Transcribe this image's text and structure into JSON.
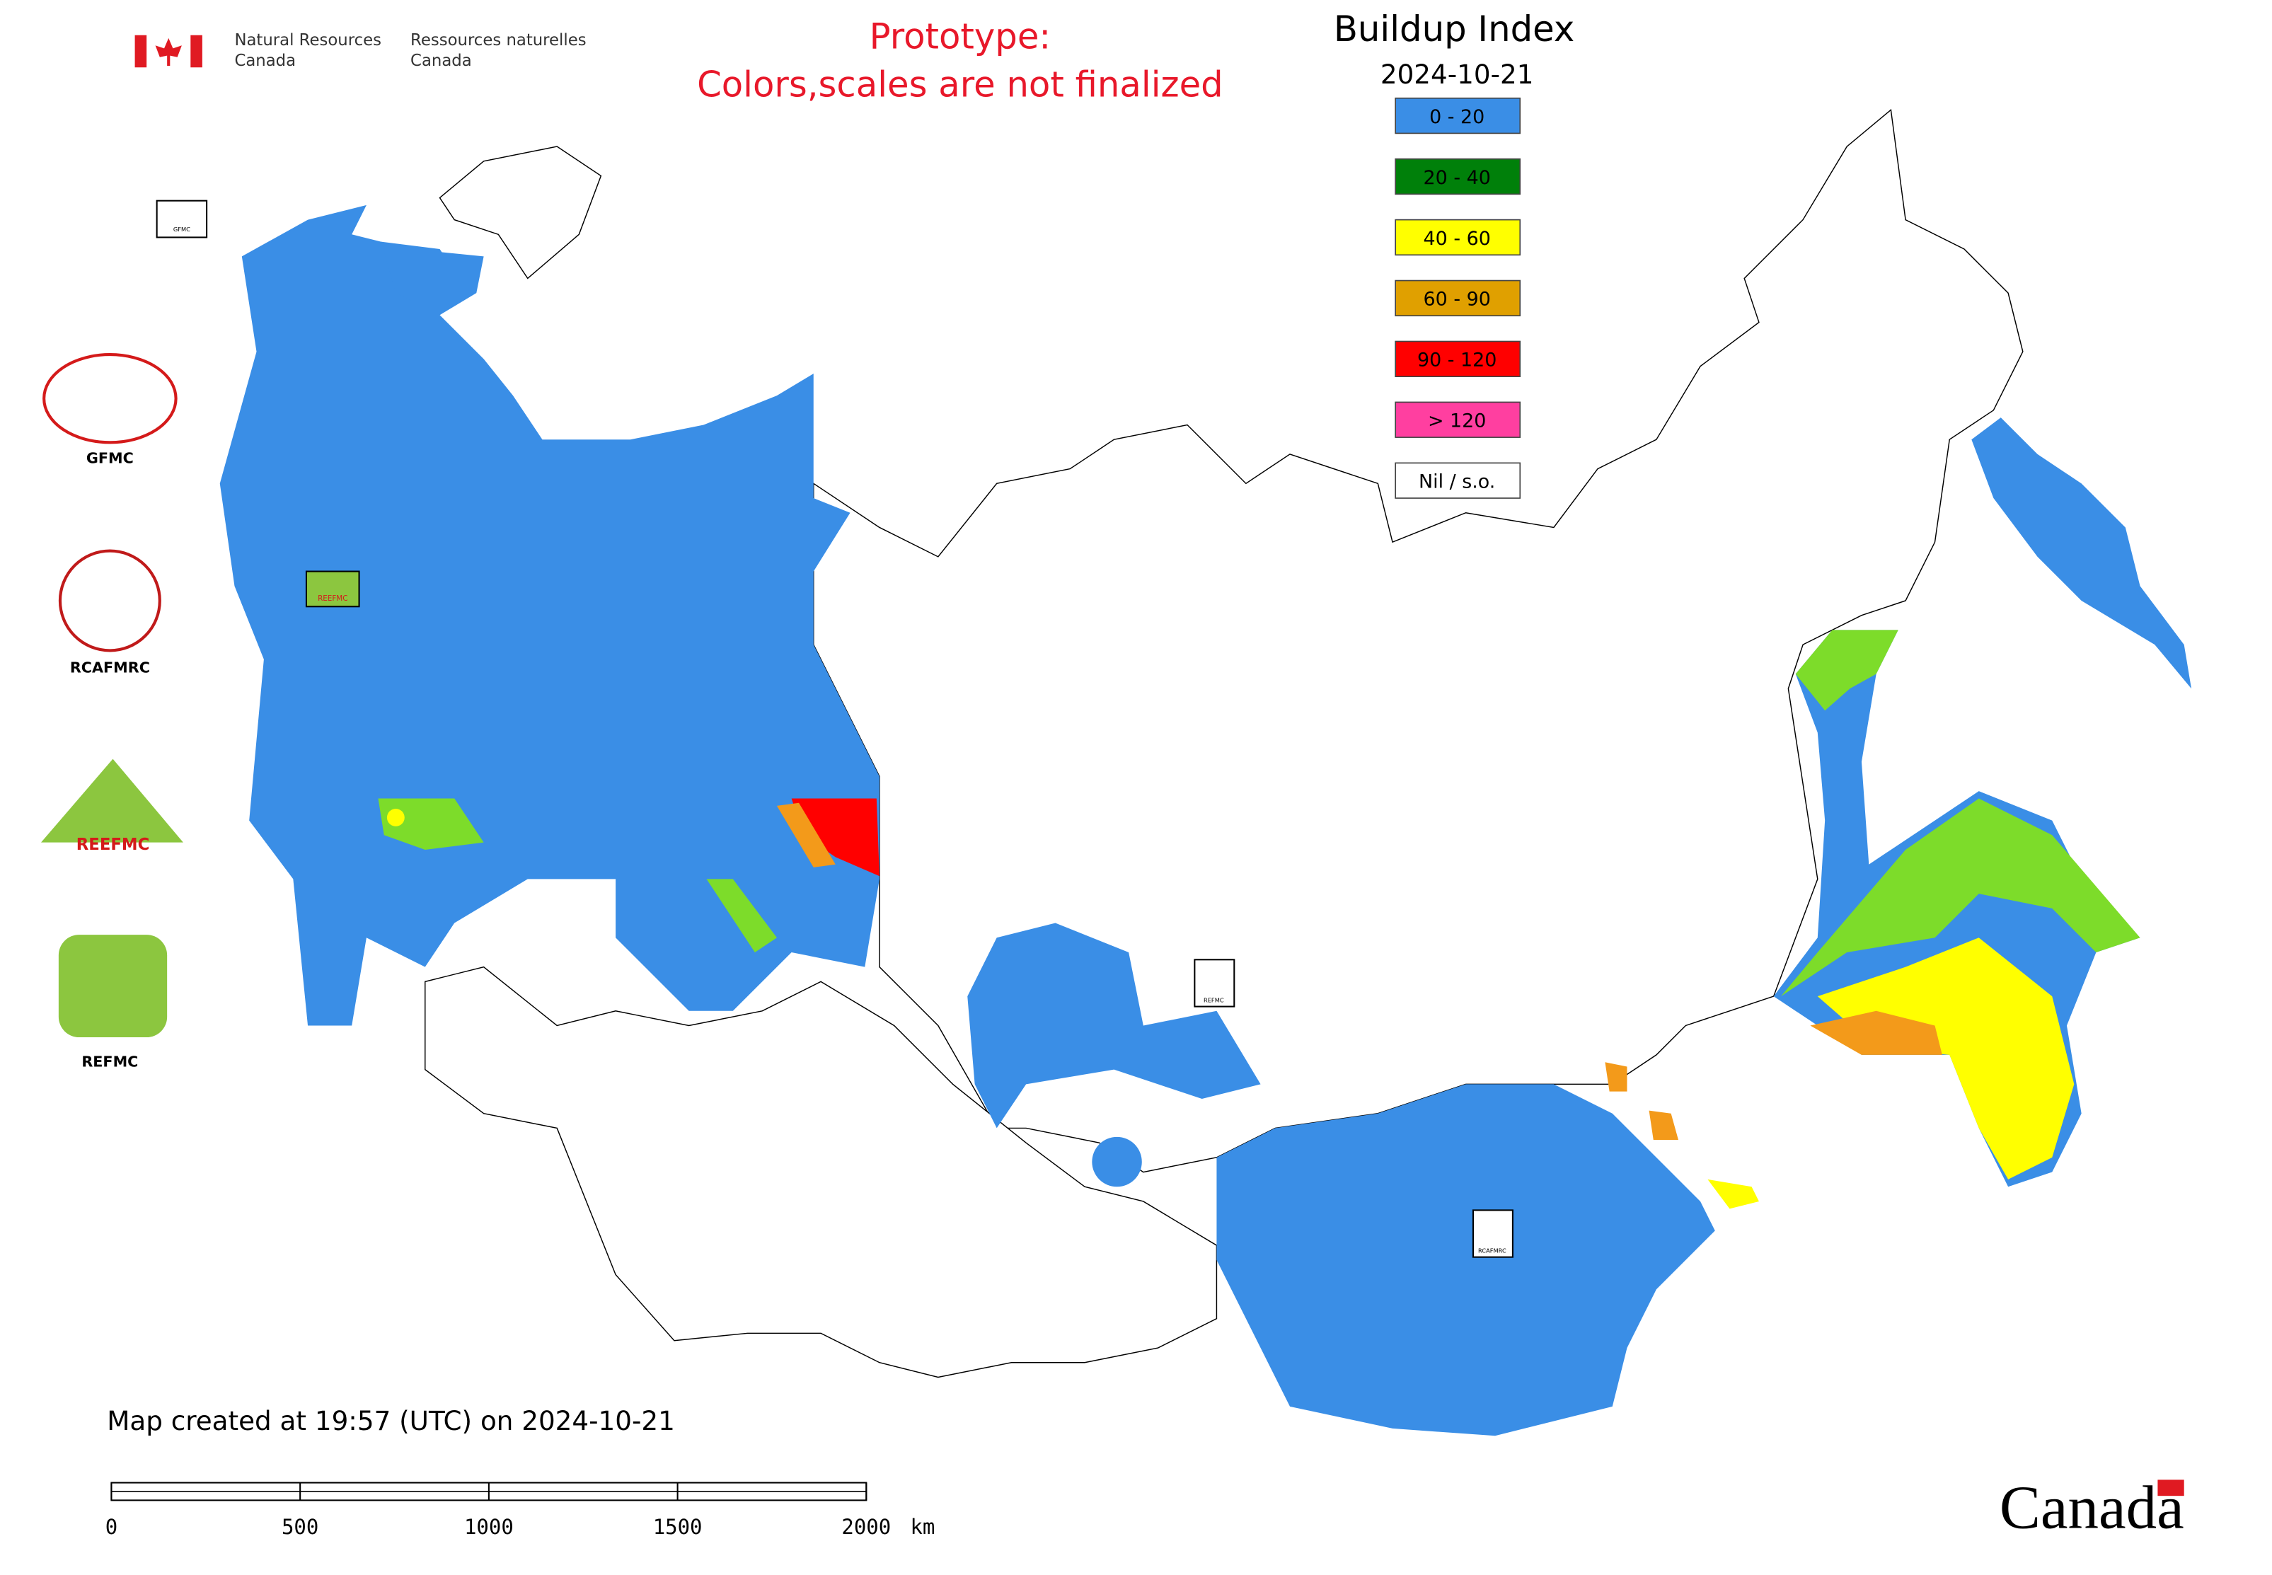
{
  "header": {
    "agency_en": [
      "Natural Resources",
      "Canada"
    ],
    "agency_fr": [
      "Ressources naturelles",
      "Canada"
    ]
  },
  "prototype_note": [
    "Prototype:",
    "Colors,scales are not finalized"
  ],
  "legend": {
    "title": "Buildup Index",
    "date": "2024-10-21",
    "items": [
      {
        "label": "0 - 20",
        "color": "#3a8ee6"
      },
      {
        "label": "20 - 40",
        "color": "#00800a"
      },
      {
        "label": "40 - 60",
        "color": "#ffff00"
      },
      {
        "label": "60 - 90",
        "color": "#e0a000"
      },
      {
        "label": "90 - 120",
        "color": "#ff0000"
      },
      {
        "label": "> 120",
        "color": "#ff3fa0"
      },
      {
        "label": "Nil / s.o.",
        "color": "#ffffff"
      }
    ]
  },
  "logos": [
    "GFMC",
    "RCAFMRC",
    "REEFMC",
    "REFMC"
  ],
  "map_badges": [
    "GFMC",
    "REEFMC",
    "REFMC",
    "RCAFMRC"
  ],
  "footer": {
    "created": "Map created at 19:57 (UTC) on 2024-10-21",
    "scale_bar": {
      "ticks": [
        0,
        500,
        1000,
        1500,
        2000
      ],
      "unit": "km"
    },
    "wordmark": "Canada"
  }
}
